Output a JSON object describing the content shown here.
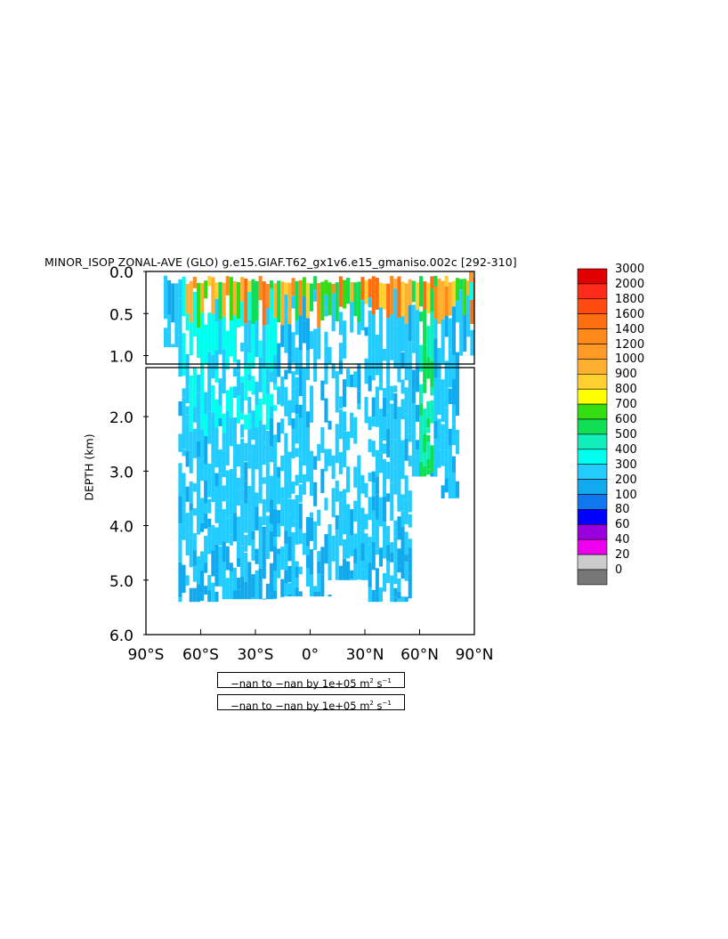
{
  "title": "MINOR_ISOP ZONAL-AVE (GLO) g.e15.GIAF.T62_gx1v6.e15_gmaniso.002c [292-310]",
  "info_lines": [
    {
      "text": "−nan to −nan by 1e+05 m",
      "sup1": "2",
      "mid": " s",
      "sup2": "−1"
    },
    {
      "text": "−nan to −nan by 1e+05 m",
      "sup1": "2",
      "mid": " s",
      "sup2": "−1"
    }
  ],
  "chart_data": {
    "type": "heatmap",
    "title": "MINOR_ISOP ZONAL-AVE (GLO) g.e15.GIAF.T62_gx1v6.e15_gmaniso.002c [292-310]",
    "xlabel": "",
    "ylabel": "DEPTH (km)",
    "x_ticks": [
      "90°S",
      "60°S",
      "30°S",
      "0°",
      "30°N",
      "60°N",
      "90°N"
    ],
    "x_range": [
      -90,
      90
    ],
    "y_ticks_upper": [
      "0.0",
      "0.5",
      "1.0"
    ],
    "y_ticks_lower": [
      "2.0",
      "3.0",
      "4.0",
      "5.0",
      "6.0"
    ],
    "y_range": [
      0,
      6
    ],
    "y_split_km": 1.1,
    "colorbar": {
      "levels": [
        "3000",
        "2000",
        "1800",
        "1600",
        "1400",
        "1200",
        "1000",
        "900",
        "800",
        "700",
        "600",
        "500",
        "400",
        "300",
        "200",
        "100",
        "80",
        "60",
        "40",
        "20",
        "0"
      ],
      "colors": [
        "#e00000",
        "#ff2a1a",
        "#ff4a10",
        "#ff6e10",
        "#ff8a1a",
        "#ff9a28",
        "#ffb030",
        "#ffd030",
        "#ffff00",
        "#33dd11",
        "#11dd55",
        "#11eebb",
        "#00ffee",
        "#22ccff",
        "#11aaee",
        "#1177ee",
        "#0000ff",
        "#9900dd",
        "#ee00ee",
        "#cccccc",
        "#777777"
      ]
    },
    "regions": [
      {
        "name": "surface-band",
        "lat": [
          -70,
          88
        ],
        "depth_km": [
          0,
          0.2
        ],
        "value": 1400
      },
      {
        "name": "southern-ocean-plume",
        "lat": [
          -72,
          -20
        ],
        "depth_km": [
          0,
          2.0
        ],
        "value": 400
      },
      {
        "name": "atlantic-deep",
        "lat": [
          -72,
          55
        ],
        "depth_km": [
          0.2,
          5.3
        ],
        "value": 300
      },
      {
        "name": "abyssal",
        "lat": [
          -65,
          50
        ],
        "depth_km": [
          4.3,
          5.4
        ],
        "value": 200
      },
      {
        "name": "north-atlantic-column",
        "lat": [
          58,
          66
        ],
        "depth_km": [
          0.4,
          3.0
        ],
        "value": 600
      }
    ]
  }
}
